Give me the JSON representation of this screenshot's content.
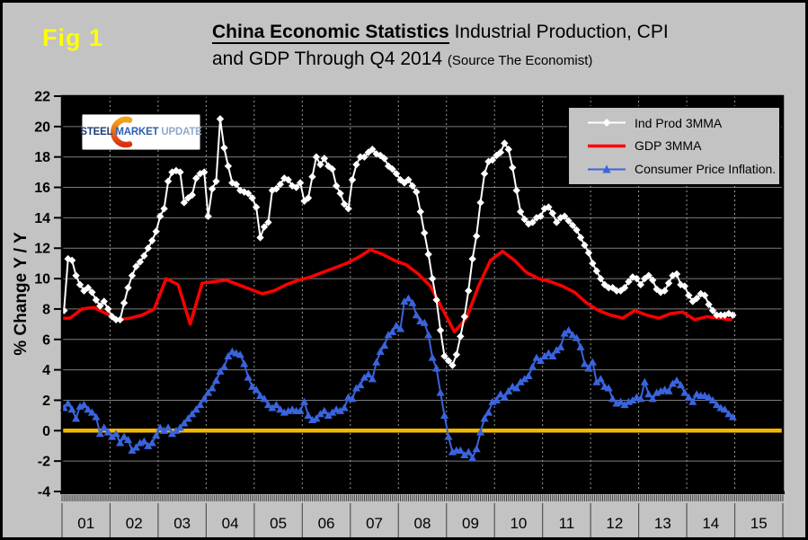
{
  "figure_label": "Fig 1",
  "title": {
    "bold": "China Economic Statistics",
    "rest": " Industrial Production, CPI",
    "line2": "and GDP Through Q4 2014 ",
    "source": "(Source The Economist)"
  },
  "logo": {
    "word1": "STEEL",
    "word2": "MARKET",
    "word3": "UPDATE"
  },
  "legend": {
    "items": [
      {
        "label": "Ind Prod 3MMA",
        "color": "#ffffff",
        "marker": "diamond"
      },
      {
        "label": "GDP 3MMA",
        "color": "#ff0000",
        "marker": "line"
      },
      {
        "label": "Consumer Price Inflation.",
        "color": "#3a64dd",
        "marker": "triangle"
      }
    ]
  },
  "chart_data": {
    "type": "line",
    "title": "China Economic Statistics  Industrial Production, CPI and GDP Through Q4 2014",
    "ylabel": "% Change Y / Y",
    "ylim": [
      -4,
      22
    ],
    "yticks": [
      22,
      20,
      18,
      16,
      14,
      12,
      10,
      8,
      6,
      4,
      2,
      0,
      -2,
      -4
    ],
    "x_categories": [
      "01",
      "02",
      "03",
      "04",
      "05",
      "06",
      "07",
      "08",
      "09",
      "10",
      "11",
      "12",
      "13",
      "14",
      "15"
    ],
    "grid": true,
    "legend_position": "top-right",
    "colors": {
      "background": "#c3c3c3",
      "plot_bg": "#000000",
      "grid_h": "#7d7d7d",
      "grid_v_dashed": "#9a9a9a",
      "zero_line": "#f2b700",
      "indprod_white": "#ffffff",
      "gdp_red": "#ff0000",
      "cpi_blue": "#3a64dd",
      "fig_label_yellow": "#ffff00"
    },
    "series": [
      {
        "name": "Ind Prod 3MMA",
        "id": "ind-prod",
        "color": "#ffffff",
        "marker": "diamond",
        "freq": "monthly",
        "line_width": 2,
        "start": "2001-01",
        "values": [
          7.9,
          11.3,
          11.2,
          10.2,
          9.6,
          9.2,
          9.4,
          9.1,
          8.6,
          8.2,
          8.5,
          8.0,
          7.5,
          7.3,
          7.3,
          8.4,
          9.4,
          10.2,
          10.8,
          11.1,
          11.5,
          12.0,
          12.5,
          13.1,
          14.1,
          14.6,
          16.4,
          17.0,
          17.1,
          17.0,
          15.0,
          15.3,
          15.5,
          16.6,
          16.9,
          17.0,
          14.1,
          15.9,
          16.4,
          20.5,
          18.6,
          17.4,
          16.3,
          16.2,
          15.8,
          15.7,
          15.6,
          15.3,
          14.7,
          12.7,
          13.4,
          13.7,
          15.8,
          15.9,
          16.2,
          16.6,
          16.5,
          16.1,
          16.0,
          16.3,
          15.1,
          15.3,
          16.7,
          18.0,
          17.5,
          17.9,
          17.4,
          17.2,
          16.1,
          15.6,
          14.9,
          14.6,
          16.5,
          17.5,
          18.0,
          18.0,
          18.3,
          18.5,
          18.2,
          18.1,
          17.9,
          17.4,
          17.2,
          16.9,
          16.5,
          16.3,
          16.5,
          16.1,
          15.7,
          14.4,
          13.0,
          11.6,
          10.0,
          8.6,
          6.6,
          4.9,
          4.6,
          4.3,
          5.0,
          6.2,
          7.5,
          9.2,
          11.3,
          12.8,
          15.0,
          16.9,
          17.7,
          17.8,
          18.1,
          18.3,
          18.9,
          18.5,
          17.3,
          15.8,
          14.4,
          13.9,
          13.6,
          13.7,
          14.0,
          14.1,
          14.6,
          14.7,
          14.3,
          13.7,
          14.0,
          14.1,
          13.8,
          13.5,
          13.2,
          12.7,
          12.2,
          11.7,
          11.0,
          10.5,
          10.0,
          9.6,
          9.4,
          9.4,
          9.2,
          9.2,
          9.4,
          9.8,
          10.1,
          10.0,
          9.6,
          10.0,
          10.2,
          9.9,
          9.3,
          9.1,
          9.2,
          9.7,
          10.2,
          10.3,
          9.6,
          9.5,
          8.9,
          8.5,
          8.7,
          9.0,
          8.9,
          8.3,
          7.9,
          7.6,
          7.6,
          7.6,
          7.7,
          7.6
        ]
      },
      {
        "name": "GDP 3MMA",
        "id": "gdp",
        "color": "#ff0000",
        "marker": "none",
        "freq": "quarterly",
        "line_width": 3.5,
        "start": "2001-Q1",
        "values": [
          7.4,
          8.0,
          8.1,
          7.7,
          7.3,
          7.4,
          7.6,
          8.0,
          10.0,
          9.6,
          7.0,
          9.7,
          9.8,
          9.9,
          9.6,
          9.3,
          9.0,
          9.2,
          9.6,
          9.9,
          10.1,
          10.4,
          10.7,
          11.0,
          11.4,
          11.9,
          11.6,
          11.2,
          10.9,
          10.3,
          9.5,
          8.0,
          6.5,
          7.4,
          9.5,
          11.2,
          11.8,
          11.2,
          10.4,
          10.0,
          9.8,
          9.5,
          9.1,
          8.4,
          7.9,
          7.6,
          7.4,
          7.9,
          7.6,
          7.4,
          7.7,
          7.8,
          7.3,
          7.5,
          7.4,
          7.3
        ]
      },
      {
        "name": "Consumer Price Inflation.",
        "id": "cpi",
        "color": "#3a64dd",
        "marker": "triangle",
        "freq": "monthly",
        "line_width": 2,
        "start": "2001-01",
        "values": [
          1.5,
          1.8,
          1.4,
          0.8,
          1.6,
          1.7,
          1.4,
          1.2,
          0.9,
          -0.2,
          0.2,
          -0.1,
          -0.4,
          -0.2,
          -0.8,
          -0.4,
          -0.6,
          -1.3,
          -1.1,
          -0.8,
          -0.7,
          -1.0,
          -0.8,
          -0.3,
          0.2,
          0.0,
          0.2,
          -0.2,
          0.0,
          0.2,
          0.5,
          0.8,
          1.1,
          1.4,
          1.7,
          2.1,
          2.5,
          2.8,
          3.3,
          3.9,
          4.2,
          4.9,
          5.2,
          5.1,
          5.0,
          4.4,
          3.5,
          2.9,
          2.7,
          2.3,
          2.1,
          1.7,
          1.5,
          1.7,
          1.4,
          1.2,
          1.3,
          1.4,
          1.3,
          1.3,
          1.9,
          1.0,
          0.7,
          0.8,
          1.1,
          1.3,
          1.0,
          1.2,
          1.4,
          1.3,
          1.5,
          2.2,
          2.1,
          2.8,
          3.0,
          3.5,
          3.7,
          3.4,
          4.5,
          5.2,
          5.6,
          6.3,
          6.5,
          6.9,
          6.7,
          8.5,
          8.7,
          8.4,
          7.6,
          7.2,
          7.1,
          6.3,
          4.8,
          4.1,
          2.5,
          1.0,
          -0.4,
          -1.4,
          -1.3,
          -1.3,
          -1.6,
          -1.4,
          -1.8,
          -1.2,
          -0.1,
          0.8,
          1.2,
          1.9,
          2.0,
          2.4,
          2.2,
          2.6,
          2.9,
          2.8,
          3.2,
          3.4,
          3.6,
          4.2,
          4.8,
          4.6,
          4.9,
          5.1,
          4.9,
          5.3,
          5.5,
          6.4,
          6.6,
          6.3,
          6.1,
          5.5,
          4.4,
          4.1,
          4.5,
          3.2,
          3.4,
          2.9,
          2.8,
          2.1,
          1.8,
          1.9,
          1.7,
          1.9,
          2.0,
          2.2,
          2.1,
          3.2,
          2.4,
          2.1,
          2.5,
          2.6,
          2.7,
          2.6,
          3.1,
          3.3,
          3.0,
          2.5,
          2.2,
          1.9,
          2.4,
          2.3,
          2.3,
          2.2,
          2.0,
          1.7,
          1.5,
          1.4,
          1.1,
          0.9
        ]
      }
    ]
  }
}
